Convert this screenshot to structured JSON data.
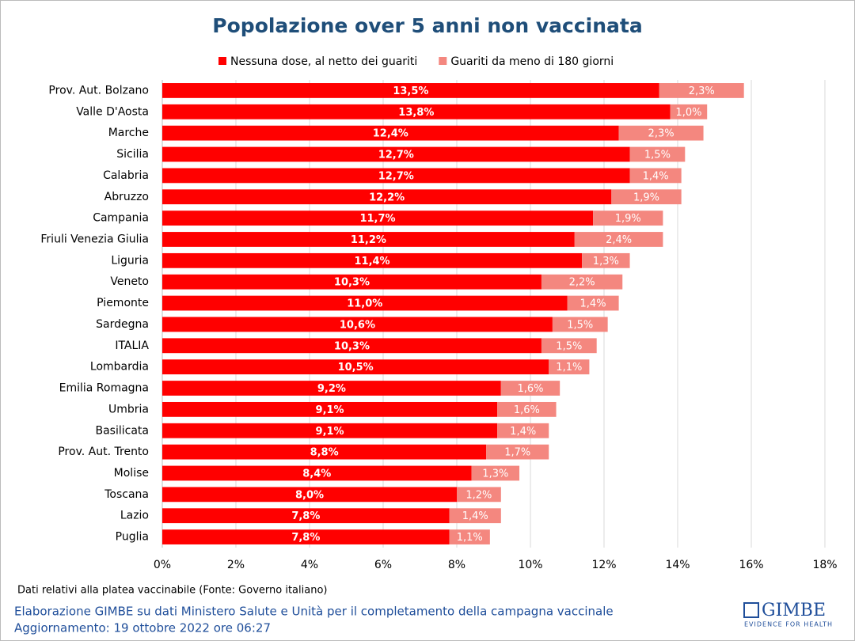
{
  "chart_data": {
    "type": "stacked-bar-horizontal",
    "title": "Popolazione over 5 anni non vaccinata",
    "categories": [
      "Prov. Aut. Bolzano",
      "Valle D'Aosta",
      "Marche",
      "Sicilia",
      "Calabria",
      "Abruzzo",
      "Campania",
      "Friuli Venezia Giulia",
      "Liguria",
      "Veneto",
      "Piemonte",
      "Sardegna",
      "ITALIA",
      "Lombardia",
      "Emilia Romagna",
      "Umbria",
      "Basilicata",
      "Prov. Aut. Trento",
      "Molise",
      "Toscana",
      "Lazio",
      "Puglia"
    ],
    "series": [
      {
        "name": "Nessuna dose, al netto dei guariti",
        "color": "#ff0000",
        "values": [
          13.5,
          13.8,
          12.4,
          12.7,
          12.7,
          12.2,
          11.7,
          11.2,
          11.4,
          10.3,
          11.0,
          10.6,
          10.3,
          10.5,
          9.2,
          9.1,
          9.1,
          8.8,
          8.4,
          8.0,
          7.8,
          7.8
        ],
        "value_labels": [
          "13,5%",
          "13,8%",
          "12,4%",
          "12,7%",
          "12,7%",
          "12,2%",
          "11,7%",
          "11,2%",
          "11,4%",
          "10,3%",
          "11,0%",
          "10,6%",
          "10,3%",
          "10,5%",
          "9,2%",
          "9,1%",
          "9,1%",
          "8,8%",
          "8,4%",
          "8,0%",
          "7,8%",
          "7,8%"
        ]
      },
      {
        "name": "Guariti da meno di 180 giorni",
        "color": "#f4877f",
        "values": [
          2.3,
          1.0,
          2.3,
          1.5,
          1.4,
          1.9,
          1.9,
          2.4,
          1.3,
          2.2,
          1.4,
          1.5,
          1.5,
          1.1,
          1.6,
          1.6,
          1.4,
          1.7,
          1.3,
          1.2,
          1.4,
          1.1
        ],
        "value_labels": [
          "2,3%",
          "1,0%",
          "2,3%",
          "1,5%",
          "1,4%",
          "1,9%",
          "1,9%",
          "2,4%",
          "1,3%",
          "2,2%",
          "1,4%",
          "1,5%",
          "1,5%",
          "1,1%",
          "1,6%",
          "1,6%",
          "1,4%",
          "1,7%",
          "1,3%",
          "1,2%",
          "1,4%",
          "1,1%"
        ]
      }
    ],
    "xlim": [
      0,
      18
    ],
    "xticks": [
      {
        "value": 0,
        "label": "0%"
      },
      {
        "value": 2,
        "label": "2%"
      },
      {
        "value": 4,
        "label": "4%"
      },
      {
        "value": 6,
        "label": "6%"
      },
      {
        "value": 8,
        "label": "8%"
      },
      {
        "value": 10,
        "label": "10%"
      },
      {
        "value": 12,
        "label": "12%"
      },
      {
        "value": 14,
        "label": "14%"
      },
      {
        "value": 16,
        "label": "16%"
      },
      {
        "value": 18,
        "label": "18%"
      }
    ],
    "grid": true,
    "legend": "top"
  },
  "footer": {
    "source": "Dati relativi alla platea vaccinabile (Fonte: Governo italiano)",
    "credit": "Elaborazione GIMBE su dati Ministero Salute e Unità per il completamento della campagna vaccinale",
    "updated": "Aggiornamento: 19 ottobre 2022 ore 06:27"
  },
  "logo": {
    "name": "GIMBE",
    "tagline": "EVIDENCE FOR HEALTH"
  }
}
